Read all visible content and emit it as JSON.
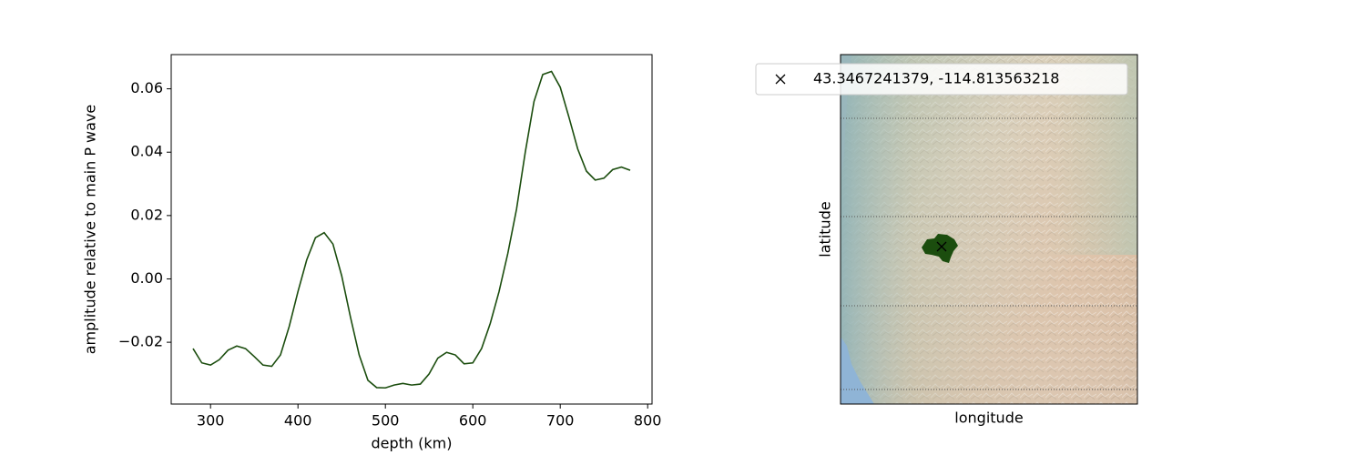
{
  "chart_data": [
    {
      "type": "line",
      "x": [
        280,
        290,
        300,
        310,
        320,
        330,
        340,
        350,
        360,
        370,
        380,
        390,
        400,
        410,
        420,
        430,
        440,
        450,
        460,
        470,
        480,
        490,
        500,
        510,
        520,
        530,
        540,
        550,
        560,
        570,
        580,
        590,
        600,
        610,
        620,
        630,
        640,
        650,
        660,
        670,
        680,
        690,
        700,
        710,
        720,
        730,
        740,
        750,
        760,
        770,
        780
      ],
      "values": [
        -0.022,
        -0.0265,
        -0.0272,
        -0.0255,
        -0.0225,
        -0.0212,
        -0.022,
        -0.0245,
        -0.0272,
        -0.0276,
        -0.024,
        -0.015,
        -0.004,
        0.006,
        0.013,
        0.0146,
        0.011,
        0.001,
        -0.012,
        -0.024,
        -0.032,
        -0.0343,
        -0.0344,
        -0.0335,
        -0.033,
        -0.0335,
        -0.0332,
        -0.03,
        -0.025,
        -0.0232,
        -0.024,
        -0.0268,
        -0.0265,
        -0.022,
        -0.014,
        -0.004,
        0.008,
        0.022,
        0.04,
        0.056,
        0.0645,
        0.0655,
        0.0605,
        0.051,
        0.041,
        0.034,
        0.0312,
        0.0318,
        0.0345,
        0.0353,
        0.0343
      ],
      "color": "#1b4d0e",
      "x_label": "depth (km)",
      "y_label": "amplitude relative to main P wave",
      "xlim": [
        255,
        805
      ],
      "xticks": [
        300,
        400,
        500,
        600,
        700,
        800
      ],
      "ylim": [
        -0.0395,
        0.0708
      ],
      "yticks": [
        {
          "value": -0.02,
          "label": "−0.02"
        },
        {
          "value": 0,
          "label": "0.00"
        },
        0.02,
        0.04,
        0.06
      ]
    },
    {
      "type": "map",
      "x_label": "longitude",
      "y_label": "latitude",
      "series": [
        {
          "name": "43.3467241379, -114.813563218",
          "color": "#000000"
        }
      ],
      "region_color": "#1b4d0e"
    }
  ]
}
